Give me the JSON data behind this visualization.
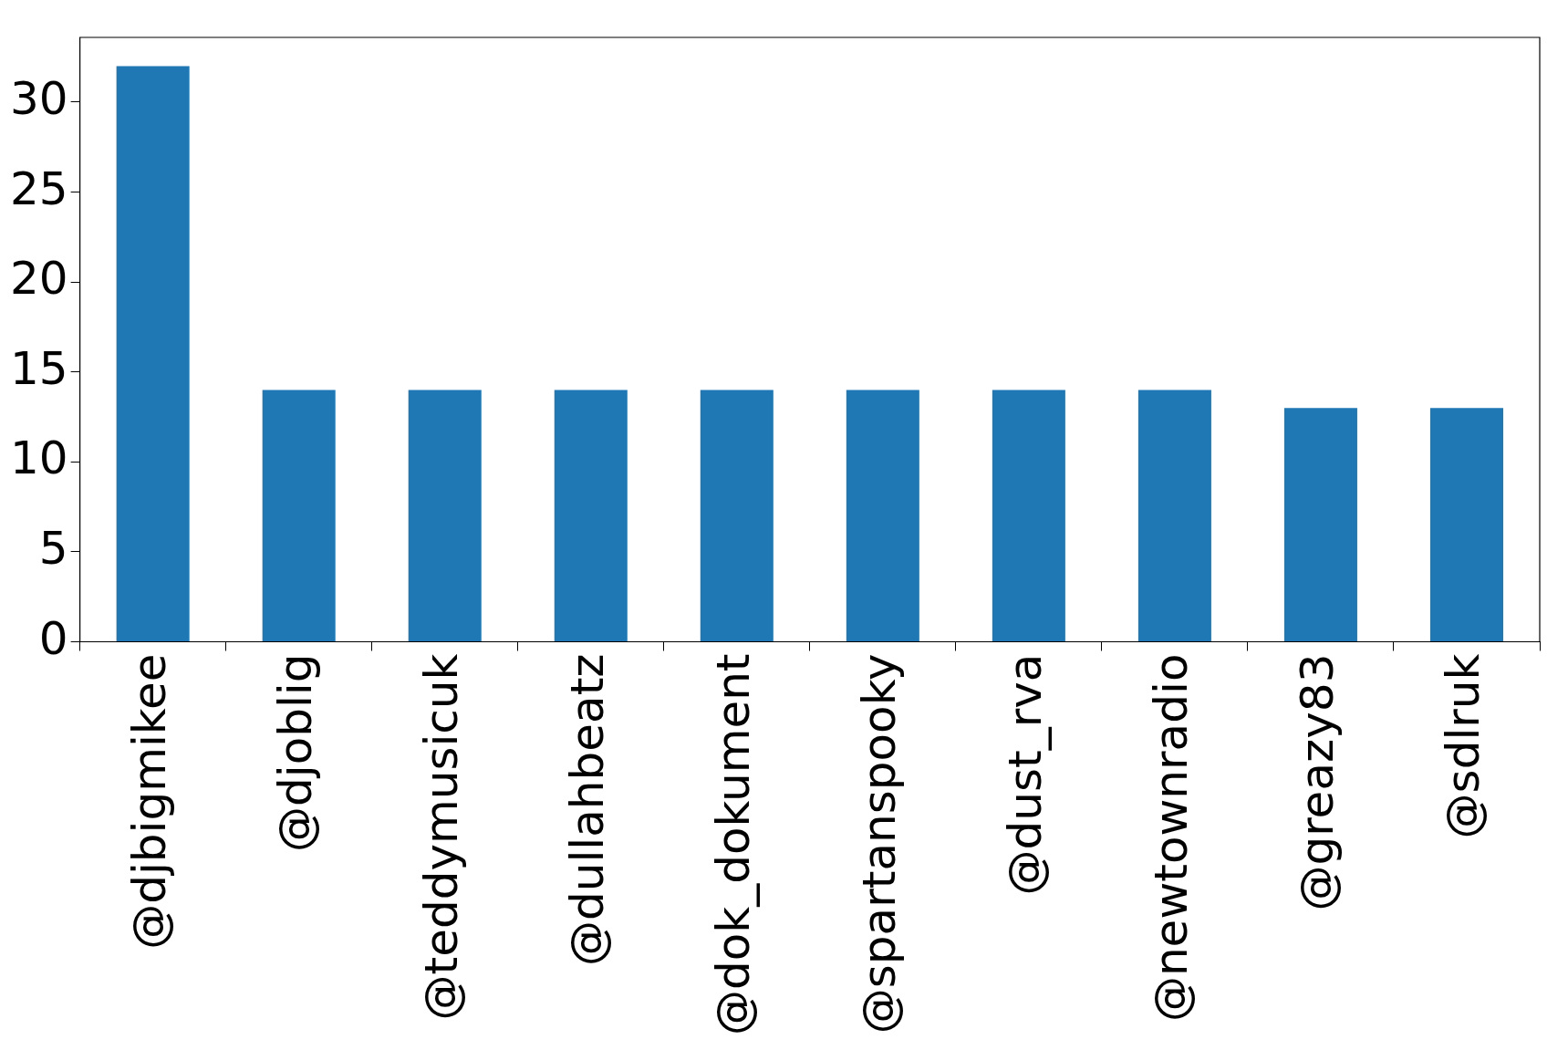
{
  "chart_data": {
    "type": "bar",
    "categories": [
      "@djbigmikee",
      "@djoblig",
      "@teddymusicuk",
      "@dullahbeatz",
      "@dok_dokument",
      "@spartanspooky",
      "@dust_rva",
      "@newtownradio",
      "@greazy83",
      "@sdlruk"
    ],
    "values": [
      32,
      14,
      14,
      14,
      14,
      14,
      14,
      14,
      13,
      13
    ],
    "color": "#1f77b4",
    "ylim": [
      0,
      33.6
    ],
    "yticks": [
      0,
      5,
      10,
      15,
      20,
      25,
      30
    ],
    "grid": false,
    "legend": false
  }
}
